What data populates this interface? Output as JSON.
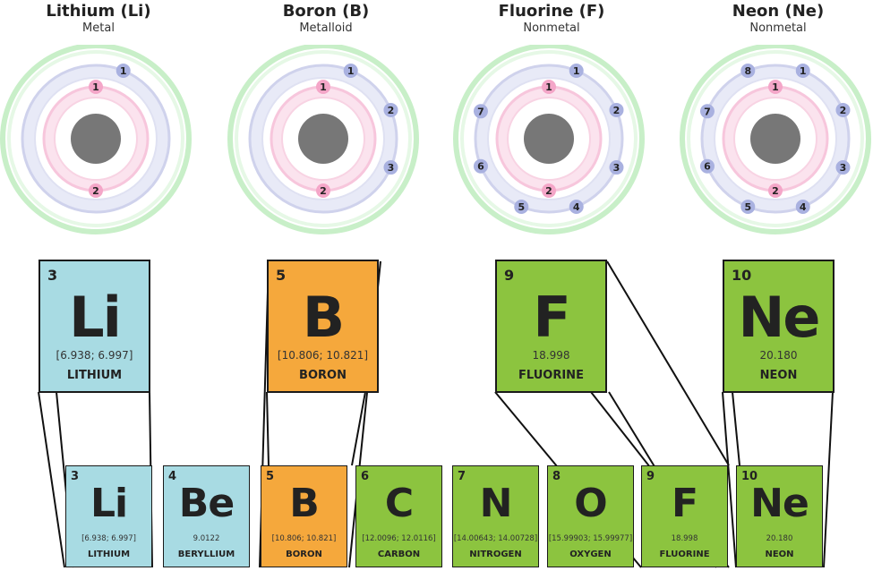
{
  "atoms": [
    {
      "name": "Lithium (Li)",
      "type": "Metal",
      "inner": [
        "1",
        "2"
      ],
      "outer": [
        "1"
      ]
    },
    {
      "name": "Boron (B)",
      "type": "Metalloid",
      "inner": [
        "1",
        "2"
      ],
      "outer": [
        "1",
        "2",
        "3"
      ]
    },
    {
      "name": "Fluorine (F)",
      "type": "Nonmetal",
      "inner": [
        "1",
        "2"
      ],
      "outer": [
        "1",
        "2",
        "3",
        "4",
        "5",
        "6",
        "7"
      ]
    },
    {
      "name": "Neon (Ne)",
      "type": "Nonmetal",
      "inner": [
        "1",
        "2"
      ],
      "outer": [
        "1",
        "2",
        "3",
        "4",
        "5",
        "6",
        "7",
        "8"
      ]
    }
  ],
  "big_tiles": [
    {
      "number": "3",
      "symbol": "Li",
      "mass": "[6.938; 6.997]",
      "name": "LITHIUM",
      "category": "metal"
    },
    {
      "number": "5",
      "symbol": "B",
      "mass": "[10.806; 10.821]",
      "name": "BORON",
      "category": "metalloid"
    },
    {
      "number": "9",
      "symbol": "F",
      "mass": "18.998",
      "name": "FLUORINE",
      "category": "nonmetal"
    },
    {
      "number": "10",
      "symbol": "Ne",
      "mass": "20.180",
      "name": "NEON",
      "category": "nonmetal"
    }
  ],
  "row_tiles": [
    {
      "number": "3",
      "symbol": "Li",
      "mass": "[6.938; 6.997]",
      "name": "LITHIUM",
      "category": "metal"
    },
    {
      "number": "4",
      "symbol": "Be",
      "mass": "9.0122",
      "name": "BERYLLIUM",
      "category": "metal"
    },
    {
      "number": "5",
      "symbol": "B",
      "mass": "[10.806; 10.821]",
      "name": "BORON",
      "category": "metalloid"
    },
    {
      "number": "6",
      "symbol": "C",
      "mass": "[12.0096; 12.0116]",
      "name": "CARBON",
      "category": "nonmetal"
    },
    {
      "number": "7",
      "symbol": "N",
      "mass": "[14.00643; 14.00728]",
      "name": "NITROGEN",
      "category": "nonmetal"
    },
    {
      "number": "8",
      "symbol": "O",
      "mass": "[15.99903; 15.99977]",
      "name": "OXYGEN",
      "category": "nonmetal"
    },
    {
      "number": "9",
      "symbol": "F",
      "mass": "18.998",
      "name": "FLUORINE",
      "category": "nonmetal"
    },
    {
      "number": "10",
      "symbol": "Ne",
      "mass": "20.180",
      "name": "NEON",
      "category": "nonmetal"
    }
  ],
  "colors": {
    "metal": "#a8dbe3",
    "metalloid": "#f5a83c",
    "nonmetal": "#8cc43f",
    "nucleus": "#777777",
    "shell_inner": "#f7c6dc",
    "shell_outer": "#cfd2ec",
    "shell_third": "#c8efc8",
    "electron_inner": "#f4a6c8",
    "electron_outer": "#a9b1e0"
  }
}
